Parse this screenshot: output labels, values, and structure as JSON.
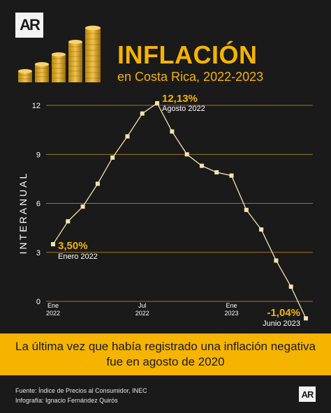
{
  "brand": {
    "logo_text": "AR"
  },
  "header": {
    "title": "INFLACIÓN",
    "subtitle": "en Costa Rica, 2022-2023"
  },
  "chart_data": {
    "type": "line",
    "ylabel": "INTERANUAL",
    "ylim": [
      0,
      12
    ],
    "yticks": [
      "0",
      "3",
      "6",
      "9",
      "12"
    ],
    "x": [
      "2022-01",
      "2022-02",
      "2022-03",
      "2022-04",
      "2022-05",
      "2022-06",
      "2022-07",
      "2022-08",
      "2022-09",
      "2022-10",
      "2022-11",
      "2022-12",
      "2023-01",
      "2023-02",
      "2023-03",
      "2023-04",
      "2023-05",
      "2023-06"
    ],
    "values": [
      3.5,
      4.9,
      5.8,
      7.2,
      8.8,
      10.1,
      11.5,
      12.13,
      10.4,
      9.0,
      8.3,
      7.9,
      7.7,
      5.6,
      4.4,
      2.5,
      0.9,
      -1.04
    ],
    "xticks": [
      {
        "index": 0,
        "line1": "Ene",
        "line2": "2022"
      },
      {
        "index": 6,
        "line1": "Jul",
        "line2": "2022"
      },
      {
        "index": 12,
        "line1": "Ene",
        "line2": "2023"
      }
    ],
    "annotations": [
      {
        "index": 0,
        "value_label": "3,50%",
        "date_label": "Enero 2022"
      },
      {
        "index": 7,
        "value_label": "12,13%",
        "date_label": "Agosto 2022"
      },
      {
        "index": 17,
        "value_label": "-1,04%",
        "date_label": "Junio 2023"
      }
    ],
    "grid": true,
    "colors": {
      "line": "#f5e3b0",
      "grid": "#c9971a",
      "accent": "#f5b400"
    }
  },
  "banner": {
    "text": "La última vez que había registrado una inflación negativa fue en agosto de 2020"
  },
  "footer": {
    "source": "Fuente: Índice de Precios al Consumidor, INEC",
    "credit": "Infografía: Ignacio Fernández Quirós"
  }
}
